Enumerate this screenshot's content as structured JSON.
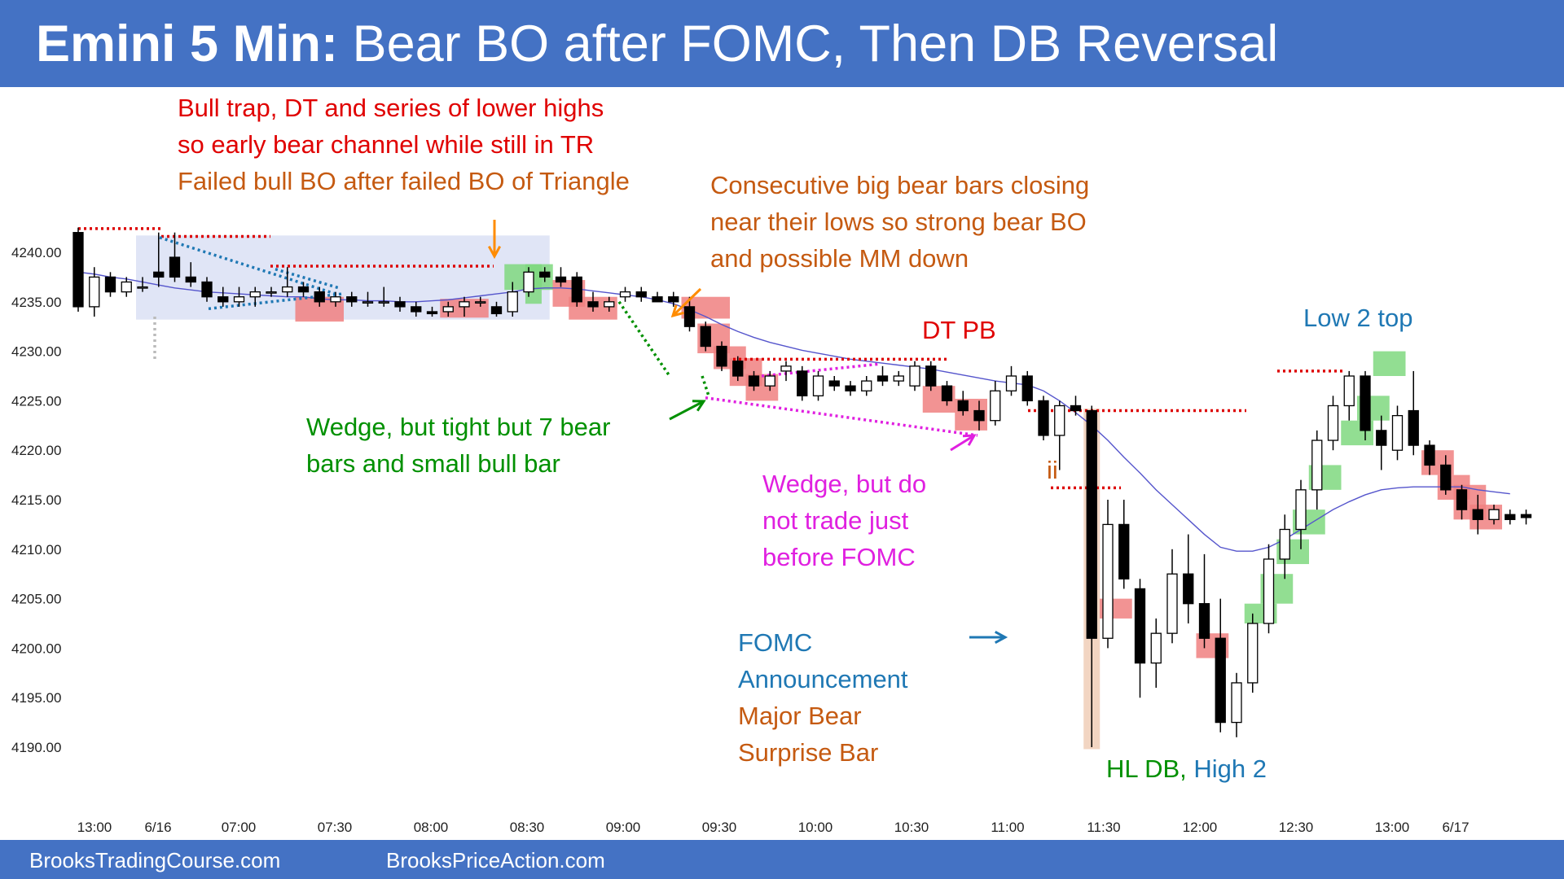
{
  "header": {
    "title_bold": "Emini 5 Min:",
    "title_rest": "Bear BO after FOMC, Then DB Reversal",
    "color": "#4472c4"
  },
  "footer": {
    "left": "BrooksTradingCourse.com",
    "right": "BrooksPriceAction.com"
  },
  "annotations": {
    "bull_trap": [
      "Bull trap, DT and series of lower highs",
      "so early bear channel while still in TR"
    ],
    "failed_bull_bo": "Failed bull BO after failed BO of Triangle",
    "consecutive_bear": [
      "Consecutive big bear bars closing",
      "near their lows so strong bear BO",
      "and possible MM down"
    ],
    "dt_pb": "DT PB",
    "low2_top": "Low 2 top",
    "wedge_green": [
      "Wedge, but tight but 7 bear",
      "bars and small bull bar"
    ],
    "wedge_magenta": [
      "Wedge, but do",
      "not trade just",
      "before FOMC"
    ],
    "ii": "ii",
    "fomc": [
      "FOMC",
      "Announcement"
    ],
    "surprise": [
      "Major Bear",
      "Surprise Bar"
    ],
    "hl_db": "HL DB,",
    "high2": "High 2"
  },
  "colors": {
    "bull_highlight": "#7fd87f",
    "bear_highlight": "#f08080",
    "tr_box": "#dde2f5",
    "ema": "#5555cc",
    "red_annotation": "#e00000",
    "orange_annotation": "#c55a11",
    "green_annotation": "#009000",
    "magenta_annotation": "#e020e0",
    "blue_annotation": "#1f78b4"
  },
  "chart_data": {
    "type": "candlestick",
    "ylim": [
      4189,
      4243
    ],
    "y_ticks": [
      "4240.00",
      "4235.00",
      "4230.00",
      "4225.00",
      "4220.00",
      "4215.00",
      "4210.00",
      "4205.00",
      "4200.00",
      "4195.00",
      "4190.00"
    ],
    "x_ticks": [
      "13:00",
      "6/16",
      "07:00",
      "07:30",
      "08:00",
      "08:30",
      "09:00",
      "09:30",
      "10:00",
      "10:30",
      "11:00",
      "11:30",
      "12:00",
      "12:30",
      "13:00",
      "6/17"
    ],
    "bars": [
      {
        "o": 4242,
        "h": 4242.5,
        "l": 4234,
        "c": 4234.5
      },
      {
        "o": 4234.5,
        "h": 4238.5,
        "l": 4233.5,
        "c": 4237.5
      },
      {
        "o": 4237.5,
        "h": 4238,
        "l": 4235.5,
        "c": 4236
      },
      {
        "o": 4236,
        "h": 4237.5,
        "l": 4235.5,
        "c": 4237
      },
      {
        "o": 4236.5,
        "h": 4237.5,
        "l": 4236,
        "c": 4236.5
      },
      {
        "o": 4238,
        "h": 4242,
        "l": 4236.5,
        "c": 4237.5
      },
      {
        "o": 4239.5,
        "h": 4242,
        "l": 4237,
        "c": 4237.5
      },
      {
        "o": 4237.5,
        "h": 4239,
        "l": 4236.5,
        "c": 4237
      },
      {
        "o": 4237,
        "h": 4237.5,
        "l": 4235,
        "c": 4235.5
      },
      {
        "o": 4235.5,
        "h": 4236.5,
        "l": 4234.5,
        "c": 4235
      },
      {
        "o": 4235,
        "h": 4236.5,
        "l": 4234.5,
        "c": 4235.5
      },
      {
        "o": 4235.5,
        "h": 4236.5,
        "l": 4234.5,
        "c": 4236
      },
      {
        "o": 4236,
        "h": 4236.5,
        "l": 4235.5,
        "c": 4236
      },
      {
        "o": 4236,
        "h": 4238.5,
        "l": 4235.5,
        "c": 4236.5
      },
      {
        "o": 4236.5,
        "h": 4237,
        "l": 4235.5,
        "c": 4236
      },
      {
        "o": 4236,
        "h": 4236.5,
        "l": 4234.5,
        "c": 4235
      },
      {
        "o": 4235,
        "h": 4236,
        "l": 4234.5,
        "c": 4235.5
      },
      {
        "o": 4235.5,
        "h": 4236,
        "l": 4234.5,
        "c": 4235
      },
      {
        "o": 4235,
        "h": 4236,
        "l": 4234.5,
        "c": 4235
      },
      {
        "o": 4235,
        "h": 4236.5,
        "l": 4234.5,
        "c": 4235
      },
      {
        "o": 4235,
        "h": 4235.5,
        "l": 4234,
        "c": 4234.5
      },
      {
        "o": 4234.5,
        "h": 4235,
        "l": 4233.5,
        "c": 4234
      },
      {
        "o": 4234,
        "h": 4234.5,
        "l": 4233.5,
        "c": 4233.8
      },
      {
        "o": 4234,
        "h": 4235,
        "l": 4233.5,
        "c": 4234.5
      },
      {
        "o": 4234.5,
        "h": 4235.5,
        "l": 4233.5,
        "c": 4235
      },
      {
        "o": 4235,
        "h": 4235.5,
        "l": 4234.5,
        "c": 4235
      },
      {
        "o": 4234.5,
        "h": 4235,
        "l": 4233.5,
        "c": 4233.8
      },
      {
        "o": 4234,
        "h": 4237,
        "l": 4233.5,
        "c": 4236
      },
      {
        "o": 4236,
        "h": 4238.5,
        "l": 4235.5,
        "c": 4238
      },
      {
        "o": 4238,
        "h": 4238.5,
        "l": 4237,
        "c": 4237.5
      },
      {
        "o": 4237.5,
        "h": 4238.5,
        "l": 4236.5,
        "c": 4237
      },
      {
        "o": 4237.5,
        "h": 4238,
        "l": 4234.5,
        "c": 4235
      },
      {
        "o": 4235,
        "h": 4236,
        "l": 4234,
        "c": 4234.5
      },
      {
        "o": 4234.5,
        "h": 4235.5,
        "l": 4234,
        "c": 4235
      },
      {
        "o": 4235.5,
        "h": 4236.5,
        "l": 4235,
        "c": 4236
      },
      {
        "o": 4236,
        "h": 4236.5,
        "l": 4235,
        "c": 4235.5
      },
      {
        "o": 4235.5,
        "h": 4236,
        "l": 4235,
        "c": 4235
      },
      {
        "o": 4235.5,
        "h": 4236,
        "l": 4234.5,
        "c": 4235
      },
      {
        "o": 4234.5,
        "h": 4235.5,
        "l": 4232,
        "c": 4232.5
      },
      {
        "o": 4232.5,
        "h": 4233,
        "l": 4230,
        "c": 4230.5
      },
      {
        "o": 4230.5,
        "h": 4231,
        "l": 4228,
        "c": 4228.5
      },
      {
        "o": 4229,
        "h": 4229.5,
        "l": 4227,
        "c": 4227.5
      },
      {
        "o": 4227.5,
        "h": 4228,
        "l": 4226,
        "c": 4226.5
      },
      {
        "o": 4226.5,
        "h": 4228,
        "l": 4226,
        "c": 4227.5
      },
      {
        "o": 4228,
        "h": 4229,
        "l": 4227,
        "c": 4228.5
      },
      {
        "o": 4228,
        "h": 4228.5,
        "l": 4225,
        "c": 4225.5
      },
      {
        "o": 4225.5,
        "h": 4228,
        "l": 4225,
        "c": 4227.5
      },
      {
        "o": 4227,
        "h": 4227.5,
        "l": 4226,
        "c": 4226.5
      },
      {
        "o": 4226.5,
        "h": 4227,
        "l": 4225.5,
        "c": 4226
      },
      {
        "o": 4226,
        "h": 4227.5,
        "l": 4225.5,
        "c": 4227
      },
      {
        "o": 4227.5,
        "h": 4228.5,
        "l": 4226.5,
        "c": 4227
      },
      {
        "o": 4227,
        "h": 4228,
        "l": 4226.5,
        "c": 4227.5
      },
      {
        "o": 4226.5,
        "h": 4229,
        "l": 4226,
        "c": 4228.5
      },
      {
        "o": 4228.5,
        "h": 4229,
        "l": 4226,
        "c": 4226.5
      },
      {
        "o": 4226.5,
        "h": 4227,
        "l": 4224.5,
        "c": 4225
      },
      {
        "o": 4225,
        "h": 4226,
        "l": 4223.5,
        "c": 4224
      },
      {
        "o": 4224,
        "h": 4225,
        "l": 4222,
        "c": 4223
      },
      {
        "o": 4223,
        "h": 4227,
        "l": 4222.5,
        "c": 4226
      },
      {
        "o": 4226,
        "h": 4228.5,
        "l": 4225.5,
        "c": 4227.5
      },
      {
        "o": 4227.5,
        "h": 4228,
        "l": 4224.5,
        "c": 4225
      },
      {
        "o": 4225,
        "h": 4225.5,
        "l": 4221,
        "c": 4221.5
      },
      {
        "o": 4221.5,
        "h": 4225,
        "l": 4218,
        "c": 4224.5
      },
      {
        "o": 4224.5,
        "h": 4225.5,
        "l": 4223.5,
        "c": 4224
      },
      {
        "o": 4224,
        "h": 4224.5,
        "l": 4190,
        "c": 4201
      },
      {
        "o": 4201,
        "h": 4215,
        "l": 4200,
        "c": 4212.5
      },
      {
        "o": 4212.5,
        "h": 4215,
        "l": 4206,
        "c": 4207
      },
      {
        "o": 4206,
        "h": 4207,
        "l": 4195,
        "c": 4198.5
      },
      {
        "o": 4198.5,
        "h": 4203,
        "l": 4196,
        "c": 4201.5
      },
      {
        "o": 4201.5,
        "h": 4210,
        "l": 4200.5,
        "c": 4207.5
      },
      {
        "o": 4207.5,
        "h": 4211.5,
        "l": 4202.5,
        "c": 4204.5
      },
      {
        "o": 4204.5,
        "h": 4209.5,
        "l": 4200,
        "c": 4201
      },
      {
        "o": 4201,
        "h": 4205,
        "l": 4191.5,
        "c": 4192.5
      },
      {
        "o": 4192.5,
        "h": 4197.5,
        "l": 4191,
        "c": 4196.5
      },
      {
        "o": 4196.5,
        "h": 4203.5,
        "l": 4195.5,
        "c": 4202.5
      },
      {
        "o": 4202.5,
        "h": 4210.5,
        "l": 4201.5,
        "c": 4209
      },
      {
        "o": 4209,
        "h": 4213.5,
        "l": 4207,
        "c": 4212
      },
      {
        "o": 4212,
        "h": 4217,
        "l": 4210,
        "c": 4216
      },
      {
        "o": 4216,
        "h": 4222,
        "l": 4214,
        "c": 4221
      },
      {
        "o": 4221,
        "h": 4225.5,
        "l": 4220,
        "c": 4224.5
      },
      {
        "o": 4224.5,
        "h": 4228,
        "l": 4223,
        "c": 4227.5
      },
      {
        "o": 4227.5,
        "h": 4228,
        "l": 4221,
        "c": 4222
      },
      {
        "o": 4222,
        "h": 4223.5,
        "l": 4218,
        "c": 4220.5
      },
      {
        "o": 4220,
        "h": 4224.5,
        "l": 4219,
        "c": 4223.5
      },
      {
        "o": 4224,
        "h": 4228,
        "l": 4219.5,
        "c": 4220.5
      },
      {
        "o": 4220.5,
        "h": 4221,
        "l": 4217.5,
        "c": 4218.5
      },
      {
        "o": 4218.5,
        "h": 4219.5,
        "l": 4215.5,
        "c": 4216
      },
      {
        "o": 4216,
        "h": 4216.5,
        "l": 4213,
        "c": 4214
      },
      {
        "o": 4214,
        "h": 4215.5,
        "l": 4211.5,
        "c": 4213
      },
      {
        "o": 4213,
        "h": 4214.5,
        "l": 4212.5,
        "c": 4214
      },
      {
        "o": 4213.5,
        "h": 4214,
        "l": 4212.5,
        "c": 4213
      },
      {
        "o": 4213.5,
        "h": 4214,
        "l": 4212.5,
        "c": 4213.2
      }
    ],
    "ema": [
      4238,
      4237.8,
      4237.5,
      4237.3,
      4237,
      4236.7,
      4236.4,
      4236.2,
      4236,
      4235.9,
      4235.8,
      4235.7,
      4235.6,
      4235.5,
      4235.5,
      4235.3,
      4235.2,
      4235.2,
      4235.1,
      4235.1,
      4235,
      4235,
      4235.1,
      4235.2,
      4235.4,
      4235.6,
      4235.8,
      4236,
      4236.3,
      4236.4,
      4236.4,
      4236.3,
      4236.1,
      4235.9,
      4235.7,
      4235.5,
      4235.2,
      4234.8,
      4234.2,
      4233.5,
      4232.7,
      4232,
      4231.4,
      4230.9,
      4230.5,
      4230.1,
      4229.8,
      4229.5,
      4229.2,
      4229,
      4228.8,
      4228.6,
      4228.4,
      4228.2,
      4227.9,
      4227.6,
      4227.3,
      4227,
      4226.8,
      4226.6,
      4226,
      4225,
      4223.8,
      4222.5,
      4221,
      4219.3,
      4217.7,
      4216,
      4214.5,
      4213,
      4211.5,
      4210.2,
      4209.8,
      4209.8,
      4210.2,
      4211,
      4212,
      4213,
      4214,
      4214.8,
      4215.5,
      4216,
      4216.2,
      4216.3,
      4216.3,
      4216.3,
      4216.3,
      4216,
      4215.8,
      4215.6
    ]
  }
}
